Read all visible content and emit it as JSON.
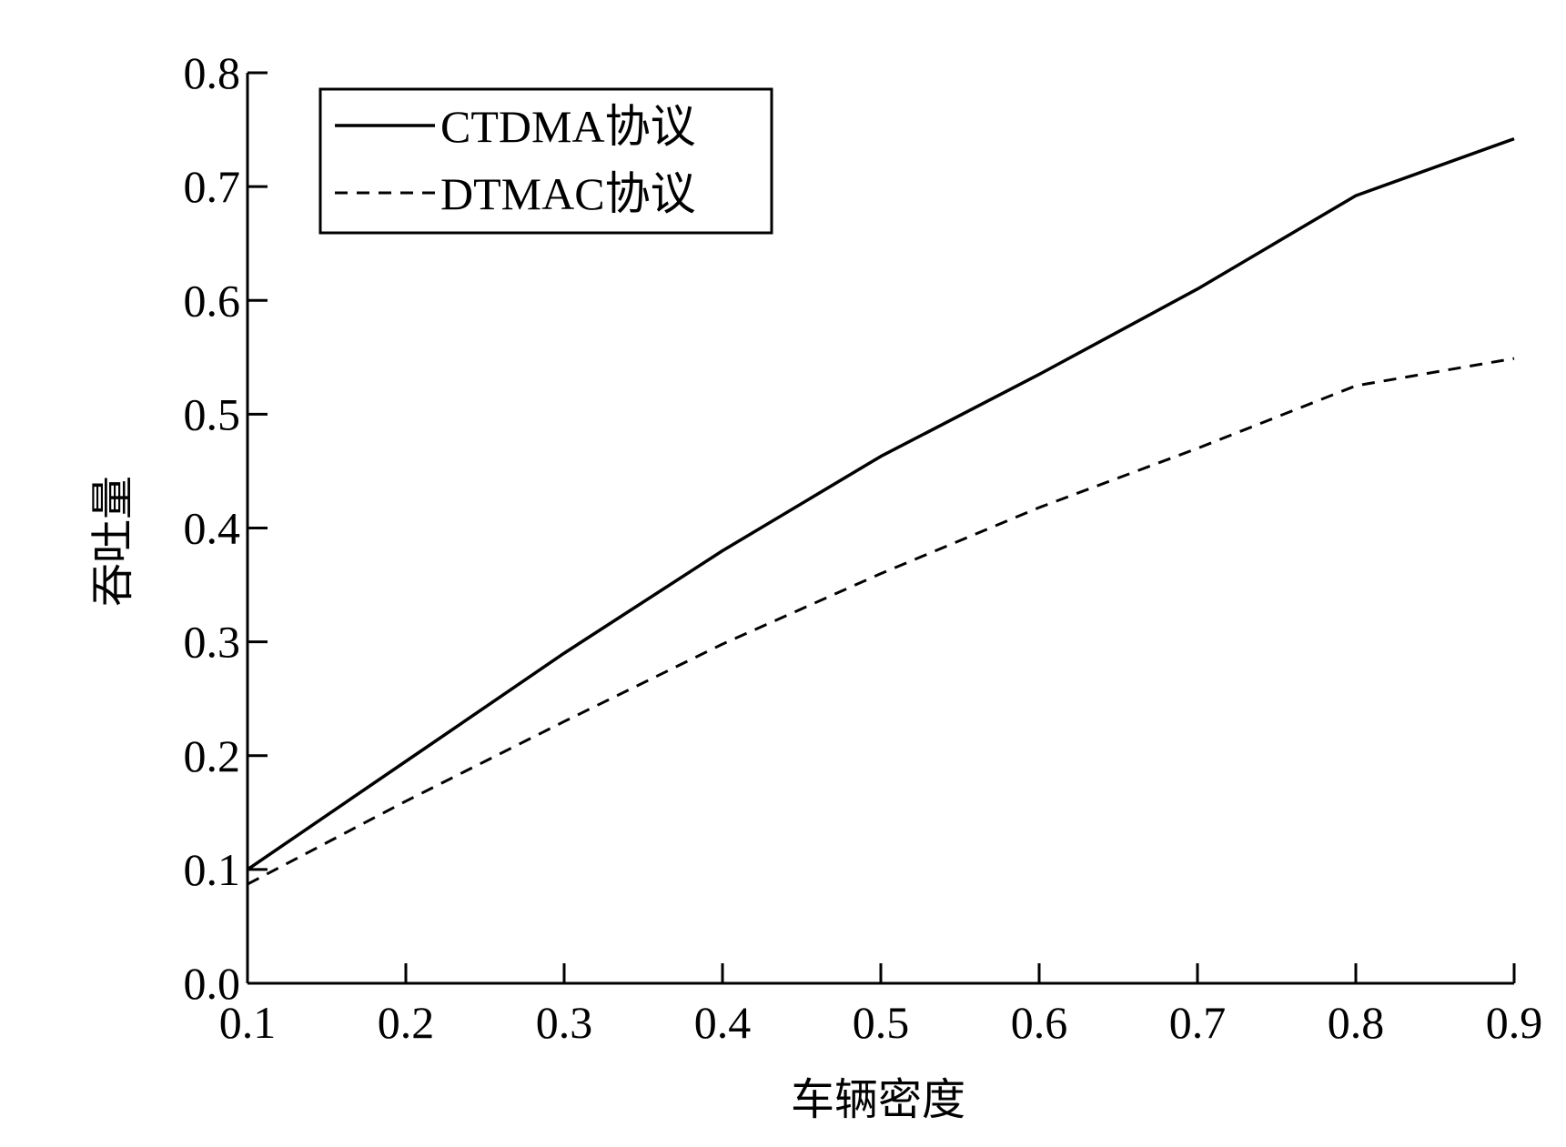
{
  "chart_data": {
    "type": "line",
    "title": "",
    "xlabel": "车辆密度",
    "ylabel": "吞吐量",
    "xlim": [
      0.1,
      0.9
    ],
    "ylim": [
      0.0,
      0.8
    ],
    "x_ticks": [
      "0.1",
      "0.2",
      "0.3",
      "0.4",
      "0.5",
      "0.6",
      "0.7",
      "0.8",
      "0.9"
    ],
    "y_ticks": [
      "0.0",
      "0.1",
      "0.2",
      "0.3",
      "0.4",
      "0.5",
      "0.6",
      "0.7",
      "0.8"
    ],
    "grid": false,
    "legend_position": "top-left",
    "x": [
      0.1,
      0.2,
      0.3,
      0.4,
      0.5,
      0.6,
      0.7,
      0.8,
      0.9
    ],
    "series": [
      {
        "name": "CTDMA协议",
        "style": "solid",
        "color": "#000000",
        "values": [
          0.1,
          0.195,
          0.29,
          0.38,
          0.463,
          0.535,
          0.61,
          0.692,
          0.742
        ]
      },
      {
        "name": "DTMAC协议",
        "style": "dashed",
        "color": "#000000",
        "values": [
          0.087,
          0.16,
          0.23,
          0.298,
          0.36,
          0.418,
          0.47,
          0.525,
          0.549
        ]
      }
    ]
  }
}
